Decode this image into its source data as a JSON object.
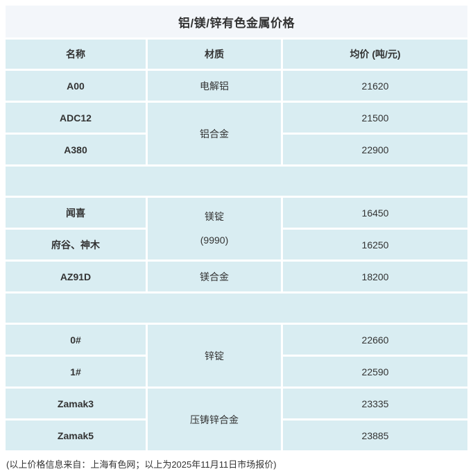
{
  "page": {
    "title": "铝/镁/锌有色金属价格",
    "footer": "(以上价格信息来自：上海有色网；以上为2025年11月11日市场报价)"
  },
  "colors": {
    "title_bg": "#f3f6fa",
    "cell_bg": "#d9edf2",
    "text": "#333333",
    "page_bg": "#ffffff"
  },
  "header": {
    "name": "名称",
    "material": "材质",
    "price": "均价 (吨/元)"
  },
  "rows": {
    "r1": {
      "name": "A00",
      "material": "电解铝",
      "price": "21620"
    },
    "r2": {
      "name": "ADC12",
      "material": "铝合金",
      "price": "21500"
    },
    "r3": {
      "name": "A380",
      "price": "22900"
    },
    "r4": {
      "name": "闻喜",
      "material_line1": "镁锭",
      "material_line2": "(9990)",
      "price": "16450"
    },
    "r5": {
      "name": "府谷、神木",
      "price": "16250"
    },
    "r6": {
      "name": "AZ91D",
      "material": "镁合金",
      "price": "18200"
    },
    "r7": {
      "name": "0#",
      "material": "锌锭",
      "price": "22660"
    },
    "r8": {
      "name": "1#",
      "price": "22590"
    },
    "r9": {
      "name": "Zamak3",
      "material": "压铸锌合金",
      "price": "23335"
    },
    "r10": {
      "name": "Zamak5",
      "price": "23885"
    }
  }
}
